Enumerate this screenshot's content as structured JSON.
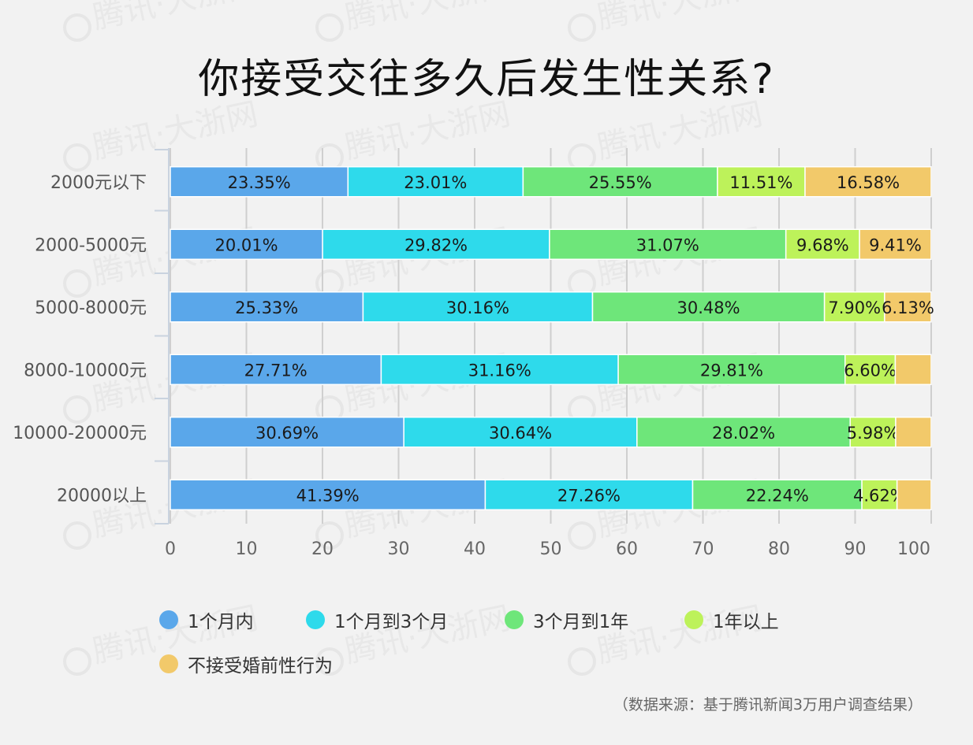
{
  "title": "你接受交往多久后发生性关系?",
  "source": "（数据来源：基于腾讯新闻3万用户调查结果）",
  "watermark": "腾讯·大浙网",
  "chart_data": {
    "type": "bar",
    "orientation": "horizontal",
    "stacked": true,
    "title": "你接受交往多久后发生性关系?",
    "categories": [
      "2000元以下",
      "2000-5000元",
      "5000-8000元",
      "8000-10000元",
      "10000-20000元",
      "20000以上"
    ],
    "xlim": [
      0,
      100
    ],
    "xticks": [
      0,
      10,
      20,
      30,
      40,
      50,
      60,
      70,
      80,
      90,
      100
    ],
    "grid": true,
    "legend_position": "bottom",
    "series": [
      {
        "name": "1个月内",
        "color": "#5aa7ea",
        "values": [
          23.35,
          20.01,
          25.33,
          27.71,
          30.69,
          41.39
        ],
        "labels": [
          "23.35%",
          "20.01%",
          "25.33%",
          "27.71%",
          "30.69%",
          "41.39%"
        ]
      },
      {
        "name": "1个月到3个月",
        "color": "#2edaeb",
        "values": [
          23.01,
          29.82,
          30.16,
          31.16,
          30.64,
          27.26
        ],
        "labels": [
          "23.01%",
          "29.82%",
          "30.16%",
          "31.16%",
          "30.64%",
          "27.26%"
        ]
      },
      {
        "name": "3个月到1年",
        "color": "#6ee67a",
        "values": [
          25.55,
          31.07,
          30.48,
          29.81,
          28.02,
          22.24
        ],
        "labels": [
          "25.55%",
          "31.07%",
          "30.48%",
          "29.81%",
          "28.02%",
          "22.24%"
        ]
      },
      {
        "name": "1年以上",
        "color": "#bdf25a",
        "values": [
          11.51,
          9.68,
          7.9,
          6.6,
          5.98,
          4.62
        ],
        "labels": [
          "11.51%",
          "9.68%",
          "7.90%",
          "6.60%",
          "5.98%",
          "4.62%"
        ]
      },
      {
        "name": "不接受婚前性行为",
        "color": "#f2c96a",
        "values": [
          16.58,
          9.41,
          6.13,
          4.72,
          4.67,
          4.49
        ],
        "labels": [
          "16.58%",
          "9.41%",
          "6.13%",
          "",
          "",
          ""
        ]
      }
    ]
  }
}
